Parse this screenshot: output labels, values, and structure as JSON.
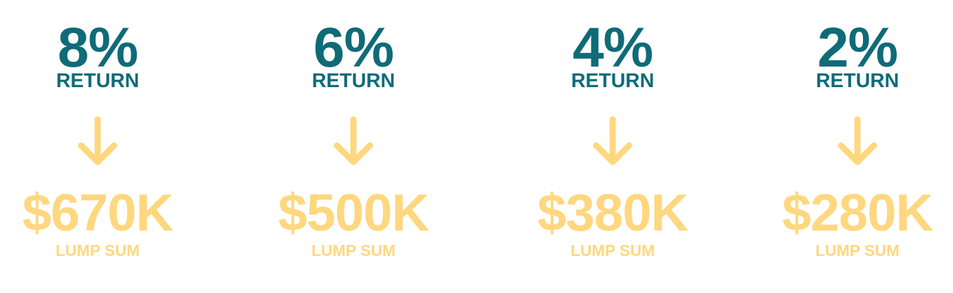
{
  "colors": {
    "teal": "#0f6b78",
    "gold": "#ffd77f"
  },
  "icons": {
    "arrow": "arrow-down-icon"
  },
  "items": [
    {
      "percent": "8%",
      "return_label": "RETURN",
      "amount": "$670K",
      "amount_label": "LUMP SUM"
    },
    {
      "percent": "6%",
      "return_label": "RETURN",
      "amount": "$500K",
      "amount_label": "LUMP SUM"
    },
    {
      "percent": "4%",
      "return_label": "RETURN",
      "amount": "$380K",
      "amount_label": "LUMP SUM"
    },
    {
      "percent": "2%",
      "return_label": "RETURN",
      "amount": "$280K",
      "amount_label": "LUMP SUM"
    }
  ]
}
